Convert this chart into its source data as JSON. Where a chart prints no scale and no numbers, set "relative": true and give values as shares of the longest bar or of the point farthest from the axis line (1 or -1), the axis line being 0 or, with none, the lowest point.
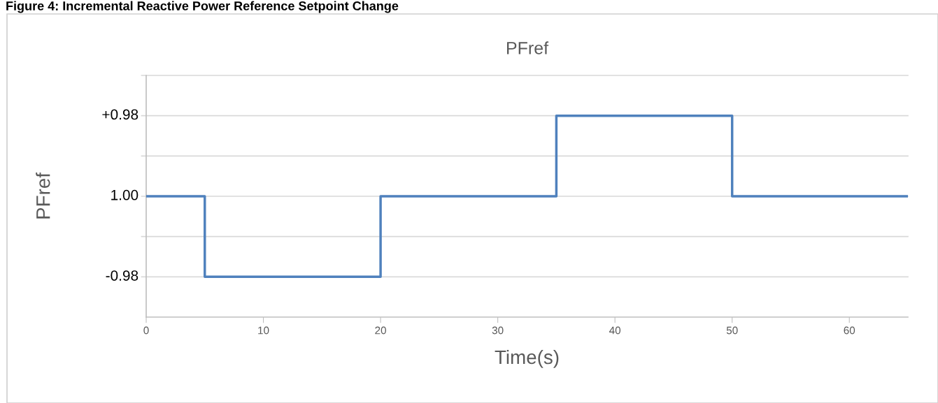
{
  "chart_data": {
    "type": "step",
    "title": "PFref",
    "xlabel": "Time(s)",
    "ylabel": "PFref",
    "annotations": [
      "Figure 4: Incremental Reactive Power Reference Setpoint Change",
      "-0.98",
      "1.00",
      "+0.98"
    ],
    "relative": true,
    "x": [
      0,
      5,
      20,
      35,
      50,
      65
    ],
    "series": [
      {
        "color": "#4f81bd",
        "values": [
          0.6,
          0.2,
          0.6,
          1,
          0.6,
          0.6
        ]
      }
    ],
    "xlim": [
      0,
      65
    ],
    "xticks": [
      0,
      10,
      20,
      30,
      40,
      50,
      60
    ],
    "ref_lines": [
      {
        "axis": "y",
        "value": 0.2,
        "label": null,
        "color": "#d9d9d9"
      },
      {
        "axis": "y",
        "value": 0.4,
        "label": null,
        "color": "#d9d9d9"
      },
      {
        "axis": "y",
        "value": 0.6,
        "label": null,
        "color": "#d9d9d9"
      },
      {
        "axis": "y",
        "value": 0.8,
        "label": null,
        "color": "#d9d9d9"
      },
      {
        "axis": "y",
        "value": 1,
        "label": null,
        "color": "#d9d9d9"
      },
      {
        "axis": "y",
        "value": 1.2,
        "label": null,
        "color": "#d9d9d9"
      }
    ],
    "legend": false
  }
}
